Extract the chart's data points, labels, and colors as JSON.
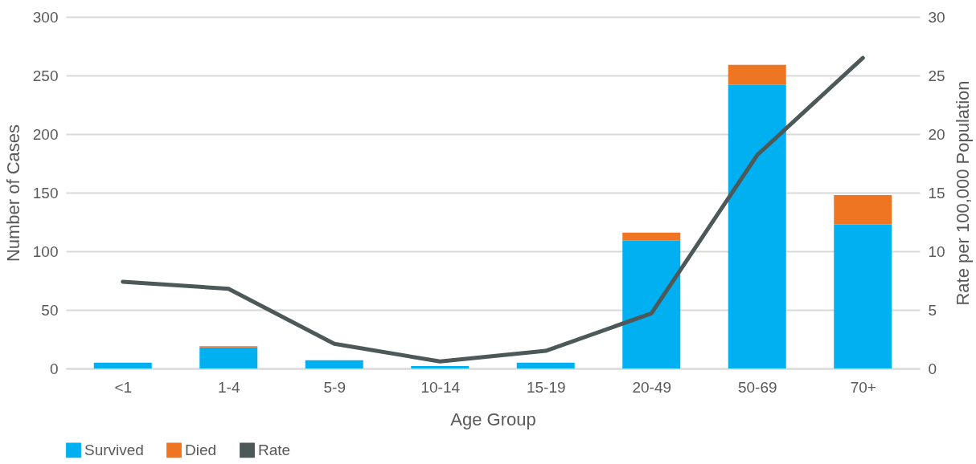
{
  "chart_data": {
    "type": "bar",
    "stacked": true,
    "xlabel": "Age Group",
    "ylabel": "Number of Cases",
    "y2label": "Rate per 100,000 Population",
    "categories": [
      "<1",
      "1-4",
      "5-9",
      "10-14",
      "15-19",
      "20-49",
      "50-69",
      "70+"
    ],
    "series": [
      {
        "name": "Survived",
        "color": "#00b0f0",
        "values": [
          5,
          18,
          7,
          2,
          5,
          109,
          242,
          123
        ]
      },
      {
        "name": "Died",
        "color": "#ee7623",
        "values": [
          0,
          1,
          0,
          0,
          0,
          7,
          17,
          25
        ]
      },
      {
        "name": "Rate",
        "type": "line",
        "axis": "y2",
        "color": "#4d5858",
        "values": [
          7.4,
          6.8,
          2.1,
          0.6,
          1.5,
          4.7,
          18.2,
          26.5
        ]
      }
    ],
    "ylim": [
      0,
      300
    ],
    "yticks": [
      0,
      50,
      100,
      150,
      200,
      250,
      300
    ],
    "y2lim": [
      0,
      30
    ],
    "y2ticks": [
      0,
      5,
      10,
      15,
      20,
      25,
      30
    ],
    "grid": "y",
    "legend": "bottom",
    "marker": "none",
    "line_style": "solid"
  }
}
